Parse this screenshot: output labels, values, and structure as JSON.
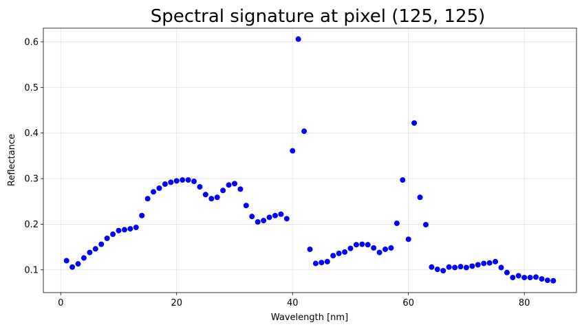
{
  "chart_data": {
    "type": "scatter",
    "title": "Spectral signature at pixel (125, 125)",
    "xlabel": "Wavelength [nm]",
    "ylabel": "Reflectance",
    "xlim": [
      -3,
      89
    ],
    "ylim": [
      0.05,
      0.63
    ],
    "xticks": [
      0,
      20,
      40,
      60,
      80
    ],
    "yticks": [
      0.1,
      0.2,
      0.3,
      0.4,
      0.5,
      0.6
    ],
    "grid": true,
    "color": "#0000ff",
    "series": [
      {
        "x": [
          1,
          2,
          3,
          4,
          5,
          6,
          7,
          8,
          9,
          10,
          11,
          12,
          13,
          14,
          15,
          16,
          17,
          18,
          19,
          20,
          21,
          22,
          23,
          24,
          25,
          26,
          27,
          28,
          29,
          30,
          31,
          32,
          33,
          34,
          35,
          36,
          37,
          38,
          39,
          40,
          41,
          42,
          43,
          44,
          45,
          46,
          47,
          48,
          49,
          50,
          51,
          52,
          53,
          54,
          55,
          56,
          57,
          58,
          59,
          60,
          61,
          62,
          63,
          64,
          65,
          66,
          67,
          68,
          69,
          70,
          71,
          72,
          73,
          74,
          75,
          76,
          77,
          78,
          79,
          80,
          81,
          82,
          83,
          84,
          85
        ],
        "y": [
          0.12,
          0.106,
          0.113,
          0.126,
          0.138,
          0.146,
          0.156,
          0.169,
          0.178,
          0.186,
          0.188,
          0.19,
          0.193,
          0.219,
          0.256,
          0.271,
          0.279,
          0.288,
          0.292,
          0.295,
          0.297,
          0.297,
          0.294,
          0.282,
          0.265,
          0.256,
          0.259,
          0.274,
          0.286,
          0.289,
          0.277,
          0.241,
          0.217,
          0.205,
          0.208,
          0.215,
          0.219,
          0.222,
          0.212,
          0.361,
          0.606,
          0.404,
          0.145,
          0.114,
          0.116,
          0.118,
          0.131,
          0.136,
          0.139,
          0.147,
          0.155,
          0.156,
          0.155,
          0.148,
          0.138,
          0.145,
          0.148,
          0.202,
          0.297,
          0.167,
          0.422,
          0.259,
          0.199,
          0.106,
          0.101,
          0.098,
          0.106,
          0.105,
          0.107,
          0.105,
          0.108,
          0.111,
          0.114,
          0.115,
          0.118,
          0.105,
          0.094,
          0.083,
          0.087,
          0.083,
          0.083,
          0.084,
          0.08,
          0.077,
          0.076
        ]
      }
    ]
  }
}
